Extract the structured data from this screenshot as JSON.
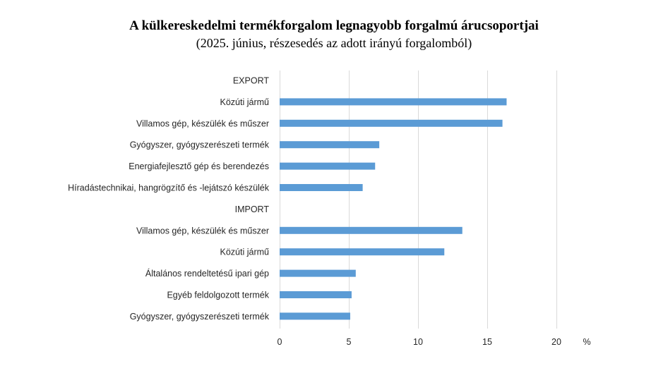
{
  "chart_data": {
    "type": "bar",
    "orientation": "horizontal",
    "title": "A külkereskedelmi termékforgalom legnagyobb forgalmú árucsoportjai",
    "subtitle": "(2025. június, részesedés az adott irányú forgalomból)",
    "unit": "%",
    "xlim": [
      0,
      20
    ],
    "xticks": [
      "0",
      "5",
      "10",
      "15",
      "20"
    ],
    "grid": true,
    "bar_color": "#5b9bd5",
    "categories": [
      "EXPORT",
      "Közúti jármű",
      "Villamos gép, készülék és műszer",
      "Gyógyszer, gyógyszerészeti termék",
      "Energiafejlesztő gép és berendezés",
      "Híradástechnikai, hangrögzítő és -lejátszó készülék",
      "IMPORT",
      "Villamos gép, készülék és műszer",
      "Közúti jármű",
      "Általános rendeltetésű ipari gép",
      "Egyéb feldolgozott termék",
      "Gyógyszer, gyógyszerészeti termék"
    ],
    "values": [
      null,
      16.4,
      16.1,
      7.2,
      6.9,
      6.0,
      null,
      13.2,
      11.9,
      5.5,
      5.2,
      5.1
    ]
  }
}
